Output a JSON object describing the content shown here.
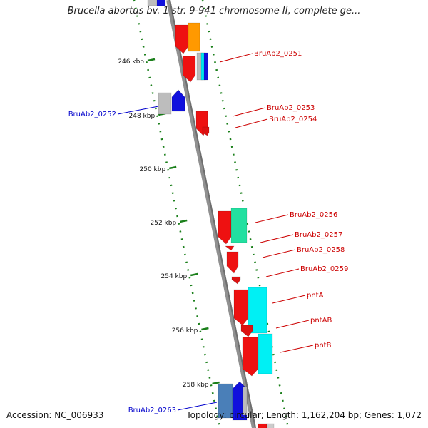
{
  "title": "Brucella abortus bv. 1 str. 9-941 chromosome II, complete ge...",
  "footer": {
    "accession": "Accession: NC_006933",
    "summary": "Topology: circular; Length: 1,162,204 bp; Genes: 1,072"
  },
  "colors": {
    "backbone": "#8a8a8a",
    "ticks": "#1a7f1a",
    "forward_label": "#cc0000",
    "reverse_label": "#0000cc"
  },
  "ticks": [
    {
      "kbp": 246,
      "label": "246 kbp"
    },
    {
      "kbp": 248,
      "label": "248 kbp"
    },
    {
      "kbp": 250,
      "label": "250 kbp"
    },
    {
      "kbp": 252,
      "label": "252 kbp"
    },
    {
      "kbp": 254,
      "label": "254 kbp"
    },
    {
      "kbp": 256,
      "label": "256 kbp"
    },
    {
      "kbp": 258,
      "label": "258 kbp"
    }
  ],
  "genes": [
    {
      "name": "BruAb2_0251",
      "label": "BruAb2_0251",
      "strand": "forward",
      "color": "#ee1111"
    },
    {
      "name": "BruAb2_0252",
      "label": "BruAb2_0252",
      "strand": "reverse",
      "color": "#1010dd"
    },
    {
      "name": "BruAb2_0253",
      "label": "BruAb2_0253",
      "strand": "forward",
      "color": "#ee1111"
    },
    {
      "name": "BruAb2_0254",
      "label": "BruAb2_0254",
      "strand": "forward",
      "color": "#ee1111"
    },
    {
      "name": "BruAb2_0256",
      "label": "BruAb2_0256",
      "strand": "forward",
      "color": "#ee1111"
    },
    {
      "name": "BruAb2_0257",
      "label": "BruAb2_0257",
      "strand": "forward",
      "color": "#ee1111"
    },
    {
      "name": "BruAb2_0258",
      "label": "BruAb2_0258",
      "strand": "forward",
      "color": "#ee1111"
    },
    {
      "name": "BruAb2_0259",
      "label": "BruAb2_0259",
      "strand": "forward",
      "color": "#ee1111"
    },
    {
      "name": "pntA",
      "label": "pntA",
      "strand": "forward",
      "color": "#ee1111"
    },
    {
      "name": "pntAB",
      "label": "pntAB",
      "strand": "forward",
      "color": "#ee1111"
    },
    {
      "name": "pntB",
      "label": "pntB",
      "strand": "forward",
      "color": "#ee1111"
    },
    {
      "name": "BruAb2_0263",
      "label": "BruAb2_0263",
      "strand": "reverse",
      "color": "#1010dd"
    }
  ]
}
